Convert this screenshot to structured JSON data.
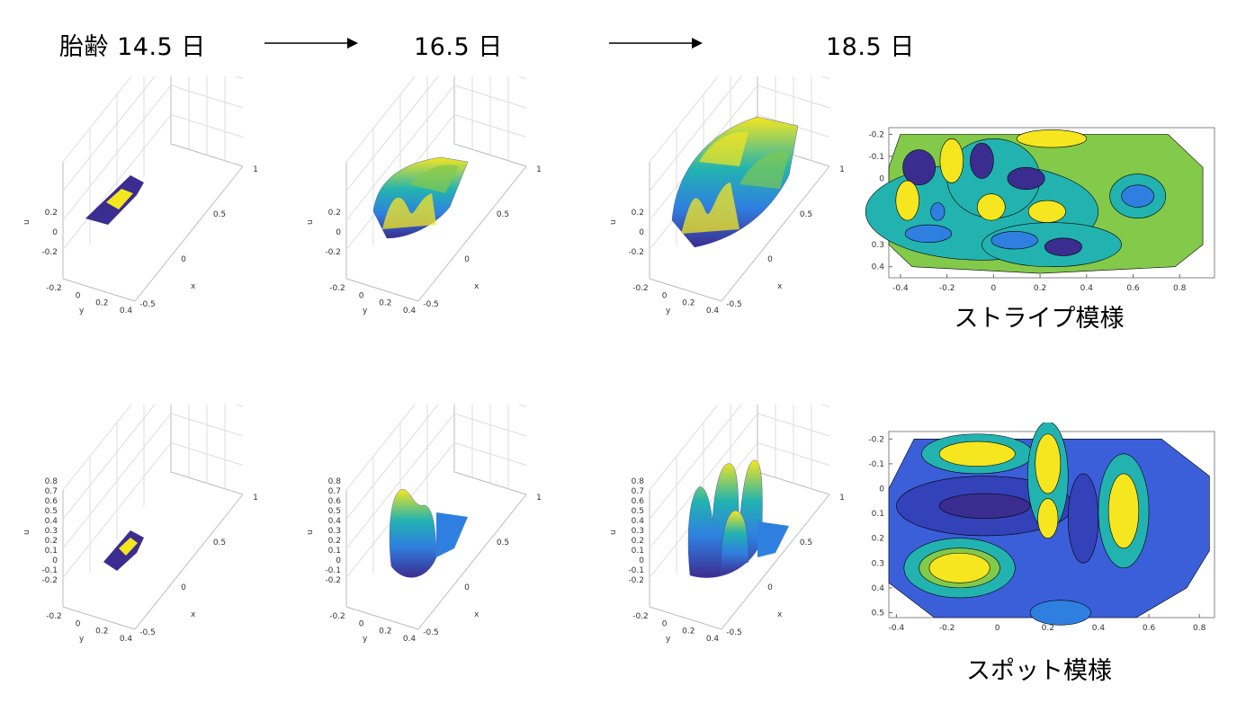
{
  "header": {
    "stage_1": "胎齢 14.5 日",
    "stage_2": "16.5 日",
    "stage_3": "18.5 日"
  },
  "captions": {
    "stripe": "ストライプ模様",
    "spot": "スポット模様"
  },
  "colors": {
    "low": "#3b2d8f",
    "mid_low": "#2f7fe0",
    "mid": "#22b3b0",
    "mid_high": "#83c94a",
    "high": "#f5e61f",
    "axis": "#bbbbbb",
    "grid": "#dddddd"
  },
  "chart_data": [
    {
      "type": "surface3d",
      "panel": "stripe-14.5",
      "zlabel": "u",
      "xlabel": "x",
      "ylabel": "y",
      "zticks": [
        "-0.2",
        "0",
        "0.2"
      ],
      "xticks": [
        "-0.5",
        "0",
        "0.5",
        "1"
      ],
      "yticks": [
        "-0.2",
        "0",
        "0.2",
        "0.4"
      ]
    },
    {
      "type": "surface3d",
      "panel": "stripe-16.5",
      "zlabel": "u",
      "xlabel": "x",
      "ylabel": "y",
      "zticks": [
        "-0.2",
        "0",
        "0.2"
      ],
      "xticks": [
        "-0.5",
        "0",
        "0.5",
        "1"
      ],
      "yticks": [
        "-0.2",
        "0",
        "0.2",
        "0.4"
      ]
    },
    {
      "type": "surface3d",
      "panel": "stripe-18.5",
      "zlabel": "u",
      "xlabel": "x",
      "ylabel": "y",
      "zticks": [
        "-0.2",
        "0",
        "0.2"
      ],
      "xticks": [
        "-0.5",
        "0",
        "0.5",
        "1"
      ],
      "yticks": [
        "-0.2",
        "0",
        "0.2",
        "0.4"
      ]
    },
    {
      "type": "contour",
      "panel": "stripe-contour",
      "xticks": [
        "-0.4",
        "-0.2",
        "0",
        "0.2",
        "0.4",
        "0.6",
        "0.8"
      ],
      "yticks": [
        "-0.2",
        "-0.1",
        "0",
        "0.1",
        "0.2",
        "0.3",
        "0.4"
      ],
      "xlim": [
        -0.45,
        0.95
      ],
      "ylim": [
        -0.23,
        0.45
      ]
    },
    {
      "type": "surface3d",
      "panel": "spot-14.5",
      "zlabel": "u",
      "xlabel": "x",
      "ylabel": "y",
      "zticks": [
        "-0.2",
        "-0.1",
        "0",
        "0.1",
        "0.2",
        "0.3",
        "0.4",
        "0.5",
        "0.6",
        "0.7",
        "0.8"
      ],
      "xticks": [
        "-0.5",
        "0",
        "0.5",
        "1"
      ],
      "yticks": [
        "-0.2",
        "0",
        "0.2",
        "0.4"
      ]
    },
    {
      "type": "surface3d",
      "panel": "spot-16.5",
      "zlabel": "u",
      "xlabel": "x",
      "ylabel": "y",
      "zticks": [
        "-0.2",
        "-0.1",
        "0",
        "0.1",
        "0.2",
        "0.3",
        "0.4",
        "0.5",
        "0.6",
        "0.7",
        "0.8"
      ],
      "xticks": [
        "-0.5",
        "0",
        "0.5",
        "1"
      ],
      "yticks": [
        "-0.2",
        "0",
        "0.2",
        "0.4"
      ]
    },
    {
      "type": "surface3d",
      "panel": "spot-18.5",
      "zlabel": "u",
      "xlabel": "x",
      "ylabel": "y",
      "zticks": [
        "-0.2",
        "-0.1",
        "0",
        "0.1",
        "0.2",
        "0.3",
        "0.4",
        "0.5",
        "0.6",
        "0.7",
        "0.8"
      ],
      "xticks": [
        "-0.5",
        "0",
        "0.5",
        "1"
      ],
      "yticks": [
        "-0.2",
        "0",
        "0.2",
        "0.4"
      ]
    },
    {
      "type": "contour",
      "panel": "spot-contour",
      "xticks": [
        "-0.4",
        "-0.2",
        "0",
        "0.2",
        "0.4",
        "0.6",
        "0.8"
      ],
      "yticks": [
        "-0.2",
        "-0.1",
        "0",
        "0.1",
        "0.2",
        "0.3",
        "0.4",
        "0.5"
      ],
      "xlim": [
        -0.43,
        0.86
      ],
      "ylim": [
        -0.23,
        0.52
      ]
    }
  ]
}
